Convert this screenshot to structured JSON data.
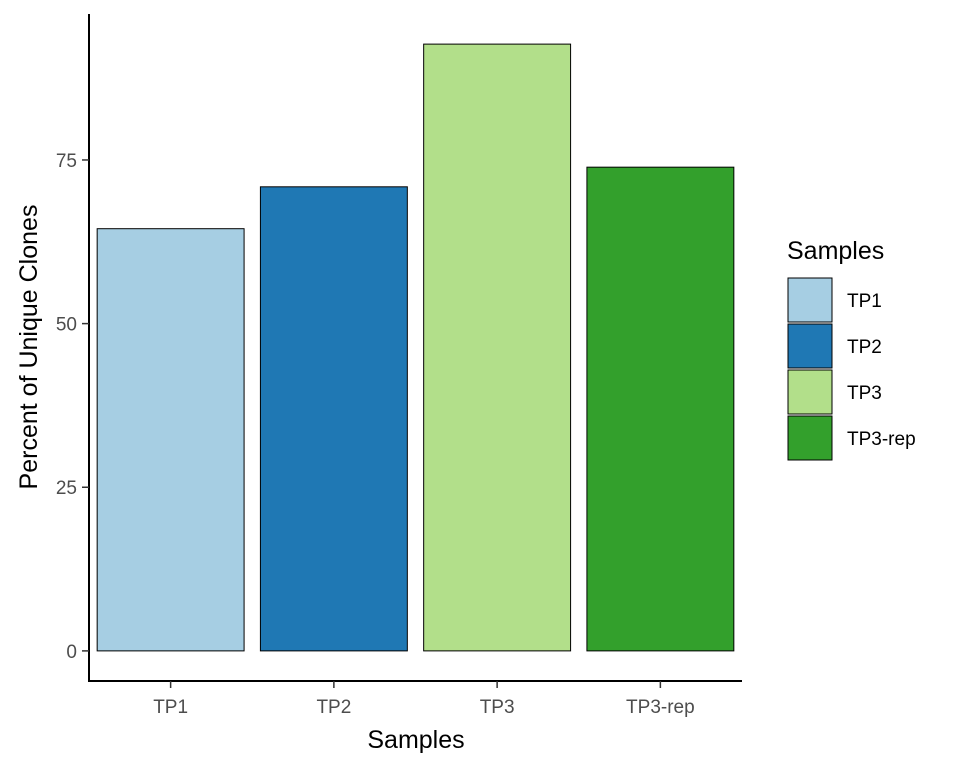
{
  "chart_data": {
    "type": "bar",
    "categories": [
      "TP1",
      "TP2",
      "TP3",
      "TP3-rep"
    ],
    "values": [
      64.5,
      70.9,
      92.7,
      73.9
    ],
    "colors": [
      "#a6cee3",
      "#1f78b4",
      "#b2df8a",
      "#33a02c"
    ],
    "xlabel": "Samples",
    "ylabel": "Percent of Unique Clones",
    "yticks": [
      0,
      25,
      50,
      75
    ],
    "ylim": [
      -4.6,
      97.3
    ],
    "grid": false,
    "legend": {
      "title": "Samples",
      "position": "right",
      "entries": [
        "TP1",
        "TP2",
        "TP3",
        "TP3-rep"
      ]
    }
  }
}
